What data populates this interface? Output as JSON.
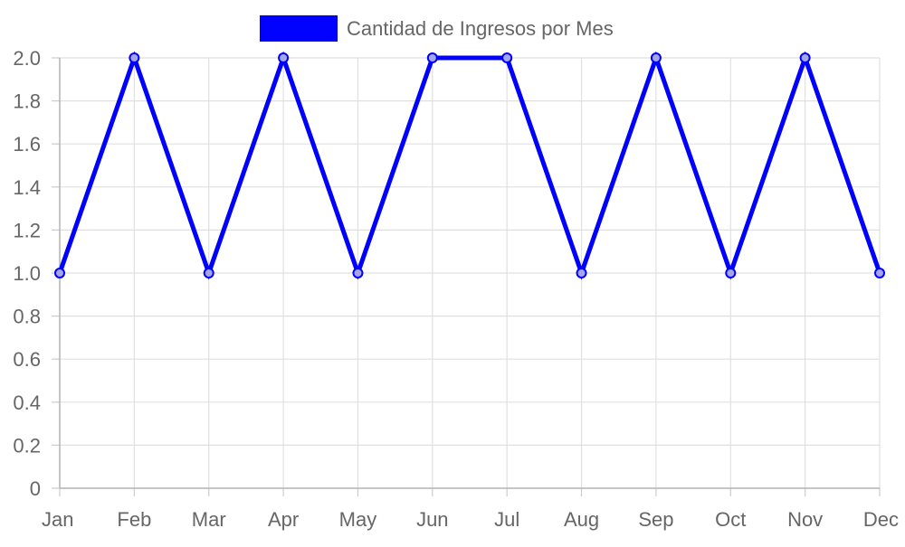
{
  "chart_data": {
    "type": "line",
    "categories": [
      "Jan",
      "Feb",
      "Mar",
      "Apr",
      "May",
      "Jun",
      "Jul",
      "Aug",
      "Sep",
      "Oct",
      "Nov",
      "Dec"
    ],
    "series": [
      {
        "name": "Cantidad de Ingresos por Mes",
        "values": [
          1,
          2,
          1,
          2,
          1,
          2,
          2,
          1,
          2,
          1,
          2,
          1
        ],
        "color": "#0000ff"
      }
    ],
    "y_ticks": [
      "0",
      "0.2",
      "0.4",
      "0.6",
      "0.8",
      "1.0",
      "1.2",
      "1.4",
      "1.6",
      "1.8",
      "2.0"
    ],
    "ylim": [
      0,
      2
    ],
    "grid": true,
    "legend_position": "top-center"
  }
}
